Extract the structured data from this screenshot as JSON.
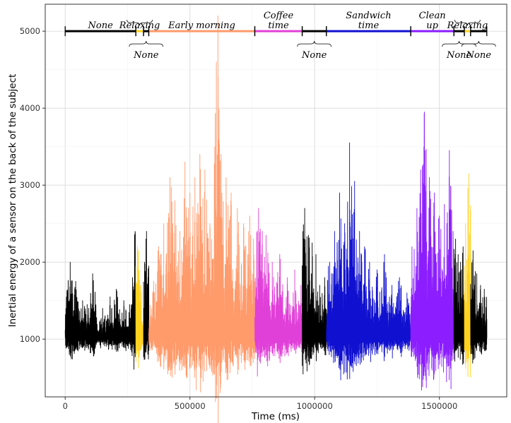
{
  "chart_data": {
    "type": "line",
    "title": "",
    "xlabel": "Time (ms)",
    "ylabel": "Inertial energy of a sensor on the back of the subject",
    "xlim": [
      -80000,
      1770000
    ],
    "ylim": [
      250,
      5350
    ],
    "x_ticks": [
      0,
      500000,
      1000000,
      1500000
    ],
    "x_tick_labels": [
      "0",
      "500000",
      "1000000",
      "1500000"
    ],
    "y_ticks": [
      1000,
      2000,
      3000,
      4000,
      5000
    ],
    "y_tick_labels": [
      "1000",
      "2000",
      "3000",
      "4000",
      "5000"
    ],
    "grid": true,
    "legend": "none",
    "timeline_y": 5000,
    "segments": [
      {
        "label": "None",
        "start": 0,
        "end": 283000,
        "color": "#000000",
        "label_pos": "above",
        "spikes": [
          [
            20000,
            2000
          ],
          [
            28000,
            1700
          ],
          [
            42000,
            1750
          ],
          [
            70000,
            1500
          ],
          [
            88000,
            1450
          ],
          [
            110000,
            1850
          ],
          [
            150000,
            1400
          ],
          [
            180000,
            1550
          ],
          [
            205000,
            1650
          ],
          [
            235000,
            1500
          ],
          [
            258000,
            1450
          ],
          [
            270000,
            1800
          ],
          [
            280000,
            2400
          ]
        ]
      },
      {
        "label": "Relaxing",
        "start": 283000,
        "end": 314000,
        "color": "#ffd21e",
        "label_pos": "above",
        "spikes": [
          [
            290000,
            2200
          ],
          [
            298000,
            1400
          ],
          [
            305000,
            1300
          ]
        ]
      },
      {
        "label": "None",
        "start": 314000,
        "end": 335000,
        "color": "#000000",
        "label_pos": "below",
        "spikes": [
          [
            318000,
            2000
          ],
          [
            326000,
            2400
          ],
          [
            332000,
            1800
          ]
        ]
      },
      {
        "label": "Early morning",
        "start": 335000,
        "end": 760000,
        "color": "#ff9a6b",
        "label_pos": "above",
        "spikes": [
          [
            355000,
            1750
          ],
          [
            375000,
            2200
          ],
          [
            395000,
            2500
          ],
          [
            420000,
            3100
          ],
          [
            440000,
            2800
          ],
          [
            460000,
            2400
          ],
          [
            480000,
            3300
          ],
          [
            500000,
            2900
          ],
          [
            520000,
            3100
          ],
          [
            540000,
            3400
          ],
          [
            560000,
            3200
          ],
          [
            580000,
            2500
          ],
          [
            600000,
            3500
          ],
          [
            612000,
            5200
          ],
          [
            625000,
            3400
          ],
          [
            645000,
            3100
          ],
          [
            665000,
            2900
          ],
          [
            690000,
            2700
          ],
          [
            715000,
            2500
          ],
          [
            740000,
            2600
          ],
          [
            755000,
            2300
          ]
        ]
      },
      {
        "label": "Coffee time",
        "start": 760000,
        "end": 950000,
        "color": "#e040d8",
        "label_pos": "above",
        "spikes": [
          [
            775000,
            2700
          ],
          [
            790000,
            2400
          ],
          [
            805000,
            2350
          ],
          [
            830000,
            2000
          ],
          [
            860000,
            2100
          ],
          [
            890000,
            1800
          ],
          [
            920000,
            1900
          ],
          [
            945000,
            1700
          ]
        ]
      },
      {
        "label": "None",
        "start": 950000,
        "end": 1047000,
        "color": "#000000",
        "label_pos": "below",
        "spikes": [
          [
            960000,
            2700
          ],
          [
            975000,
            2350
          ],
          [
            990000,
            2250
          ],
          [
            1005000,
            2100
          ],
          [
            1020000,
            1700
          ],
          [
            1040000,
            1800
          ]
        ]
      },
      {
        "label": "Sandwich time",
        "start": 1047000,
        "end": 1385000,
        "color": "#1010d0",
        "label_pos": "above",
        "spikes": [
          [
            1060000,
            2000
          ],
          [
            1080000,
            2400
          ],
          [
            1100000,
            2900
          ],
          [
            1120000,
            2500
          ],
          [
            1140000,
            3550
          ],
          [
            1160000,
            3050
          ],
          [
            1180000,
            2400
          ],
          [
            1200000,
            2200
          ],
          [
            1220000,
            2000
          ],
          [
            1250000,
            1900
          ],
          [
            1280000,
            2100
          ],
          [
            1310000,
            1700
          ],
          [
            1340000,
            1800
          ],
          [
            1370000,
            1600
          ]
        ]
      },
      {
        "label": "Clean up",
        "start": 1385000,
        "end": 1558000,
        "color": "#8b1dff",
        "label_pos": "above",
        "spikes": [
          [
            1390000,
            2200
          ],
          [
            1410000,
            2700
          ],
          [
            1425000,
            3200
          ],
          [
            1440000,
            3950
          ],
          [
            1460000,
            3100
          ],
          [
            1480000,
            2900
          ],
          [
            1500000,
            2600
          ],
          [
            1520000,
            2750
          ],
          [
            1540000,
            3450
          ],
          [
            1555000,
            2400
          ]
        ]
      },
      {
        "label": "None",
        "start": 1558000,
        "end": 1600000,
        "color": "#000000",
        "label_pos": "below",
        "spikes": [
          [
            1565000,
            2300
          ],
          [
            1575000,
            2100
          ],
          [
            1585000,
            2000
          ],
          [
            1595000,
            2200
          ]
        ]
      },
      {
        "label": "Relaxing",
        "start": 1600000,
        "end": 1625000,
        "color": "#ffd21e",
        "label_pos": "above",
        "spikes": [
          [
            1605000,
            2500
          ],
          [
            1618000,
            3150
          ]
        ]
      },
      {
        "label": "None",
        "start": 1625000,
        "end": 1690000,
        "color": "#000000",
        "label_pos": "below",
        "spikes": [
          [
            1635000,
            2150
          ],
          [
            1650000,
            1850
          ],
          [
            1665000,
            1700
          ],
          [
            1680000,
            1650
          ],
          [
            1688000,
            1400
          ]
        ]
      }
    ]
  }
}
